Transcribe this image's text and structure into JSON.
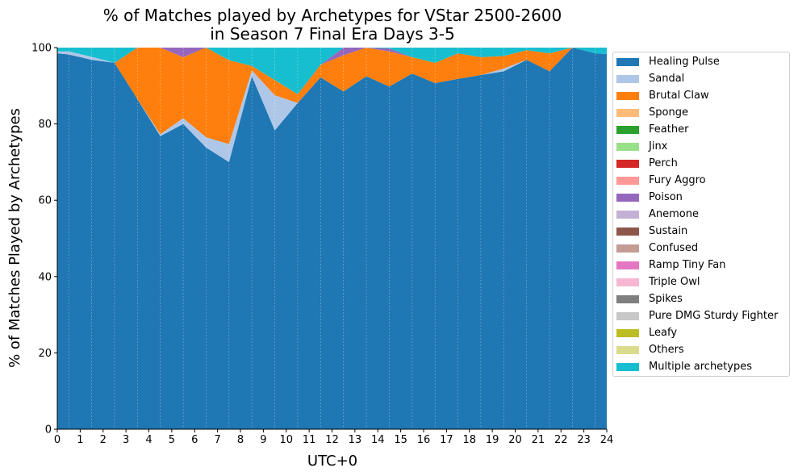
{
  "title": {
    "line1": "% of Matches played by Archetypes for VStar 2500-2600",
    "line2": "in Season 7 Final Era Days 3-5"
  },
  "chart_data": {
    "type": "area",
    "stacked": true,
    "title": "% of Matches played by Archetypes for VStar 2500-2600 in Season 7 Final Era Days 3-5",
    "xlabel": "UTC+0",
    "ylabel": "% of Matches Played by Archetypes",
    "xlim": [
      0,
      24
    ],
    "ylim": [
      0,
      100
    ],
    "x_ticks": [
      0,
      1,
      2,
      3,
      4,
      5,
      6,
      7,
      8,
      9,
      10,
      11,
      12,
      13,
      14,
      15,
      16,
      17,
      18,
      19,
      20,
      21,
      22,
      23,
      24
    ],
    "y_ticks": [
      0,
      20,
      40,
      60,
      80,
      100
    ],
    "vertical_gridlines": true,
    "legend_position": "right",
    "x": [
      0,
      0.5,
      1.5,
      2.5,
      3.5,
      4.5,
      5.5,
      6.5,
      7.5,
      8.5,
      9.5,
      10.5,
      11.5,
      12.5,
      13.5,
      14.5,
      15.5,
      16.5,
      17.5,
      18.5,
      19.5,
      20.5,
      21.5,
      22.5,
      23.5,
      24
    ],
    "series": [
      {
        "name": "Healing Pulse",
        "color": "#1f77b4",
        "values": [
          98.5,
          98.2,
          96.8,
          96.0,
          86.5,
          76.8,
          80.0,
          73.8,
          70.0,
          92.5,
          78.3,
          85.5,
          92.2,
          88.5,
          92.5,
          89.8,
          93.2,
          90.7,
          91.8,
          92.8,
          93.8,
          96.8,
          93.8,
          100,
          98.5,
          98.3
        ]
      },
      {
        "name": "Sandal",
        "color": "#aec7e8",
        "values": [
          0.5,
          0.8,
          0.8,
          0,
          0,
          0.5,
          1.5,
          2.7,
          4.7,
          1.5,
          9.2,
          0,
          0,
          0,
          0,
          0,
          0,
          0,
          0,
          0,
          0.7,
          0,
          0,
          0,
          0,
          0
        ]
      },
      {
        "name": "Brutal Claw",
        "color": "#ff7f0e",
        "values": [
          0,
          0,
          0,
          0,
          13.5,
          22.7,
          16.0,
          23.5,
          22.0,
          1.2,
          4.0,
          2.3,
          3.3,
          9.5,
          7.5,
          9.2,
          4.3,
          5.3,
          6.7,
          4.7,
          3.3,
          2.5,
          4.7,
          0,
          0,
          0
        ]
      },
      {
        "name": "Sponge",
        "color": "#ffbb78",
        "values": [
          0,
          0,
          0,
          0,
          0,
          0,
          0,
          0,
          0,
          0,
          0,
          0,
          0,
          0,
          0,
          0,
          0,
          0,
          0,
          0,
          0,
          0,
          0,
          0,
          0,
          0
        ]
      },
      {
        "name": "Feather",
        "color": "#2ca02c",
        "values": [
          0,
          0,
          0,
          0,
          0,
          0,
          0,
          0,
          0,
          0,
          0,
          0,
          0,
          0,
          0,
          0,
          0,
          0,
          0,
          0,
          0,
          0,
          0,
          0,
          0,
          0
        ]
      },
      {
        "name": "Jinx",
        "color": "#98df8a",
        "values": [
          0,
          0,
          0,
          0,
          0,
          0,
          0,
          0,
          0,
          0,
          0,
          0,
          0,
          0,
          0,
          0,
          0,
          0,
          0,
          0,
          0,
          0,
          0,
          0,
          0,
          0
        ]
      },
      {
        "name": "Perch",
        "color": "#d62728",
        "values": [
          0,
          0,
          0,
          0,
          0,
          0,
          0,
          0,
          0,
          0,
          0,
          0,
          0,
          0,
          0,
          0,
          0,
          0,
          0,
          0,
          0,
          0,
          0,
          0,
          0,
          0
        ]
      },
      {
        "name": "Fury Aggro",
        "color": "#ff9896",
        "values": [
          0,
          0,
          0,
          0,
          0,
          0,
          0,
          0,
          0,
          0,
          0,
          0,
          0,
          0,
          0,
          0,
          0,
          0,
          0,
          0,
          0,
          0,
          0,
          0,
          0,
          0
        ]
      },
      {
        "name": "Poison",
        "color": "#9467bd",
        "values": [
          0,
          0,
          0,
          0,
          0,
          0,
          2.5,
          0,
          0,
          0,
          0,
          0,
          0,
          2.0,
          0,
          0.8,
          0,
          0,
          0,
          0,
          0,
          0,
          0,
          0,
          0,
          0
        ]
      },
      {
        "name": "Anemone",
        "color": "#c5b0d5",
        "values": [
          0,
          0,
          0,
          0,
          0,
          0,
          0,
          0,
          0,
          0,
          0,
          0,
          0,
          0,
          0,
          0,
          0,
          0,
          0,
          0,
          0,
          0,
          0,
          0,
          0,
          0
        ]
      },
      {
        "name": "Sustain",
        "color": "#8c564b",
        "values": [
          0,
          0,
          0,
          0,
          0,
          0,
          0,
          0,
          0,
          0,
          0,
          0,
          0,
          0,
          0,
          0,
          0,
          0,
          0,
          0,
          0,
          0,
          0,
          0,
          0,
          0
        ]
      },
      {
        "name": "Confused",
        "color": "#c49c94",
        "values": [
          0,
          0,
          0,
          0,
          0,
          0,
          0,
          0,
          0,
          0,
          0,
          0,
          0,
          0,
          0,
          0,
          0,
          0,
          0,
          0,
          0,
          0,
          0,
          0,
          0,
          0
        ]
      },
      {
        "name": "Ramp Tiny Fan",
        "color": "#e377c2",
        "values": [
          0,
          0,
          0,
          0,
          0,
          0,
          0,
          0,
          0,
          0,
          0,
          0,
          0,
          0,
          0,
          0,
          0,
          0,
          0,
          0,
          0,
          0,
          0,
          0,
          0,
          0
        ]
      },
      {
        "name": "Triple Owl",
        "color": "#f7b6d2",
        "values": [
          0,
          0,
          0,
          0,
          0,
          0,
          0,
          0,
          0,
          0,
          0,
          0,
          0,
          0,
          0,
          0,
          0,
          0,
          0,
          0,
          0,
          0,
          0,
          0,
          0,
          0
        ]
      },
      {
        "name": "Spikes",
        "color": "#7f7f7f",
        "values": [
          0,
          0,
          0,
          0,
          0,
          0,
          0,
          0,
          0,
          0,
          0,
          0,
          0,
          0,
          0,
          0,
          0,
          0,
          0,
          0,
          0,
          0,
          0,
          0,
          0,
          0
        ]
      },
      {
        "name": "Pure DMG Sturdy Fighter",
        "color": "#c7c7c7",
        "values": [
          0,
          0,
          0,
          0,
          0,
          0,
          0,
          0,
          0,
          0,
          0,
          0,
          0,
          0,
          0,
          0,
          0,
          0,
          0,
          0,
          0,
          0,
          0,
          0,
          0,
          0
        ]
      },
      {
        "name": "Leafy",
        "color": "#bcbd22",
        "values": [
          0,
          0,
          0,
          0,
          0,
          0,
          0,
          0,
          0,
          0,
          0,
          0,
          0,
          0,
          0,
          0,
          0,
          0,
          0,
          0,
          0,
          0,
          0,
          0,
          0,
          0
        ]
      },
      {
        "name": "Others",
        "color": "#dbdb8d",
        "values": [
          0,
          0,
          0,
          0,
          0,
          0,
          0,
          0,
          0,
          0,
          0,
          0,
          0,
          0,
          0,
          0,
          0,
          0,
          0,
          0,
          0,
          0,
          0,
          0,
          0,
          0
        ]
      },
      {
        "name": "Multiple archetypes",
        "color": "#17becf",
        "values": [
          1.0,
          1.0,
          2.4,
          4.0,
          0,
          0,
          0,
          0,
          3.3,
          4.8,
          8.5,
          12.2,
          4.5,
          0,
          0,
          0.2,
          2.5,
          4.0,
          1.5,
          2.5,
          2.2,
          0.7,
          1.5,
          0,
          1.5,
          1.7
        ]
      }
    ]
  }
}
